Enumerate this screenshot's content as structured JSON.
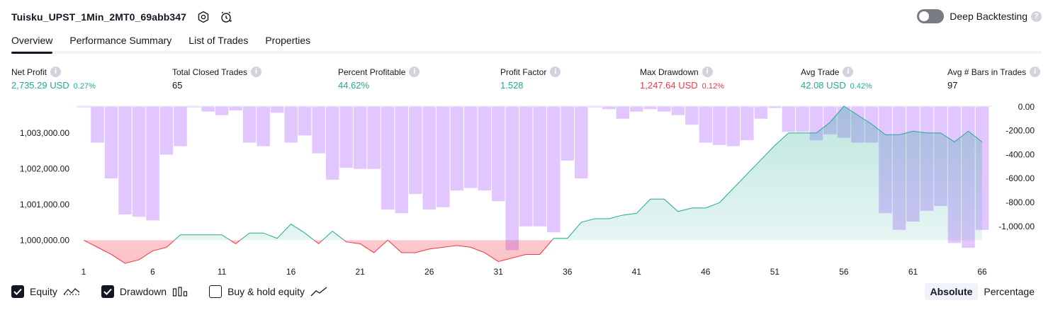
{
  "header": {
    "title": "Tuisku_UPST_1Min_2MT0_69abb347",
    "deep_backtesting_label": "Deep Backtesting",
    "deep_backtesting_on": false
  },
  "tabs": [
    {
      "label": "Overview",
      "active": true
    },
    {
      "label": "Performance Summary",
      "active": false
    },
    {
      "label": "List of Trades",
      "active": false
    },
    {
      "label": "Properties",
      "active": false
    }
  ],
  "metrics": {
    "net_profit": {
      "label": "Net Profit",
      "value": "2,735.29 USD",
      "pct": "0.27%"
    },
    "total_closed_trades": {
      "label": "Total Closed Trades",
      "value": "65"
    },
    "percent_profitable": {
      "label": "Percent Profitable",
      "value": "44.62%"
    },
    "profit_factor": {
      "label": "Profit Factor",
      "value": "1.528"
    },
    "max_drawdown": {
      "label": "Max Drawdown",
      "value": "1,247.64 USD",
      "pct": "0.12%"
    },
    "avg_trade": {
      "label": "Avg Trade",
      "value": "42.08 USD",
      "pct": "0.42%"
    },
    "avg_bars": {
      "label": "Avg # Bars in Trades",
      "value": "97"
    }
  },
  "colors": {
    "equity_up": "#22ab94",
    "equity_down": "#f23645",
    "drawdown_bar": "#e1c6ff",
    "text": "#131722",
    "axis_text": "#131722"
  },
  "chart_data": {
    "type": "area",
    "x": [
      1,
      2,
      3,
      4,
      5,
      6,
      7,
      8,
      9,
      10,
      11,
      12,
      13,
      14,
      15,
      16,
      17,
      18,
      19,
      20,
      21,
      22,
      23,
      24,
      25,
      26,
      27,
      28,
      29,
      30,
      31,
      32,
      33,
      34,
      35,
      36,
      37,
      38,
      39,
      40,
      41,
      42,
      43,
      44,
      45,
      46,
      47,
      48,
      49,
      50,
      51,
      52,
      53,
      54,
      55,
      56,
      57,
      58,
      59,
      60,
      61,
      62,
      63,
      64,
      65,
      66
    ],
    "x_ticks": [
      "1",
      "6",
      "11",
      "16",
      "21",
      "26",
      "31",
      "36",
      "41",
      "46",
      "51",
      "56",
      "61",
      "66"
    ],
    "left_axis": {
      "ticks": [
        "1,003,000.00",
        "1,002,000.00",
        "1,001,000.00",
        "1,000,000.00"
      ],
      "tick_values": [
        1003000,
        1002000,
        1001000,
        1000000
      ],
      "range": [
        999550,
        1003750
      ]
    },
    "right_axis": {
      "ticks": [
        "0.00",
        "-200.00",
        "-400.00",
        "-600.00",
        "-800.00",
        "-1,000.00"
      ],
      "tick_values": [
        0,
        -200,
        -400,
        -600,
        -800,
        -1000
      ],
      "range": [
        -1250,
        5
      ]
    },
    "baseline": 1000000,
    "series": [
      {
        "name": "Equity",
        "values": [
          1000000,
          999800,
          999600,
          999350,
          999450,
          999700,
          999800,
          1000150,
          1000150,
          1000150,
          1000150,
          999900,
          1000200,
          1000200,
          1000050,
          1000450,
          1000200,
          999900,
          1000250,
          999950,
          999900,
          999650,
          1000000,
          999650,
          999650,
          999750,
          999800,
          999850,
          999800,
          999650,
          999400,
          999500,
          999600,
          999600,
          1000050,
          1000050,
          1000500,
          1000600,
          1000600,
          1000700,
          1000750,
          1001150,
          1001150,
          1000800,
          1000900,
          1000900,
          1001050,
          1001450,
          1001850,
          1002250,
          1002650,
          1003000,
          1003000,
          1003000,
          1003300,
          1003750,
          1003500,
          1003250,
          1002950,
          1002950,
          1003050,
          1003000,
          1003000,
          1002750,
          1003050,
          1002750
        ]
      },
      {
        "name": "Drawdown",
        "values": [
          0,
          -300,
          -600,
          -900,
          -920,
          -950,
          -400,
          -330,
          0,
          -40,
          -70,
          -30,
          -300,
          -330,
          -50,
          -300,
          -240,
          -390,
          -610,
          -510,
          -520,
          -520,
          -860,
          -890,
          -730,
          -860,
          -840,
          -700,
          -680,
          -700,
          -790,
          -1200,
          -1000,
          -1000,
          -1050,
          -450,
          -600,
          0,
          -20,
          -100,
          -40,
          -20,
          -40,
          -70,
          -150,
          -300,
          -320,
          -330,
          -280,
          -100,
          -10,
          -210,
          -210,
          -280,
          -230,
          -260,
          -300,
          -300,
          -890,
          -1030,
          -960,
          -870,
          -830,
          -1140,
          -1180,
          -1030
        ]
      }
    ]
  },
  "legend": {
    "equity": {
      "label": "Equity",
      "checked": true
    },
    "drawdown": {
      "label": "Drawdown",
      "checked": true
    },
    "buy_hold": {
      "label": "Buy & hold equity",
      "checked": false
    }
  },
  "modes": {
    "absolute": "Absolute",
    "percentage": "Percentage",
    "active": "absolute"
  }
}
